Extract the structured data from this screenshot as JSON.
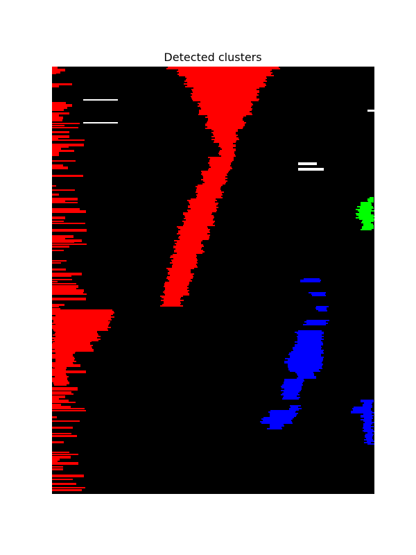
{
  "chart_data": {
    "type": "heatmap",
    "title": "Detected clusters",
    "xlabel": "",
    "ylabel": "",
    "axes_visible": false,
    "background_color": "#000000",
    "grid": false,
    "legend": "none",
    "clusters": [
      {
        "color": "#ff0000",
        "regions": [
          {
            "shape": "band",
            "description": "diagonal band from top center down-left",
            "rows": [
              [
                0,
                4,
                165,
                330
              ],
              [
                4,
                14,
                180,
                320
              ],
              [
                14,
                30,
                190,
                310
              ],
              [
                30,
                50,
                200,
                300
              ],
              [
                50,
                70,
                210,
                290
              ],
              [
                70,
                90,
                220,
                280
              ],
              [
                90,
                110,
                230,
                270
              ],
              [
                110,
                130,
                240,
                265
              ],
              [
                130,
                150,
                225,
                262
              ],
              [
                150,
                170,
                215,
                255
              ],
              [
                170,
                190,
                205,
                248
              ],
              [
                190,
                210,
                195,
                240
              ],
              [
                210,
                230,
                188,
                235
              ],
              [
                230,
                250,
                180,
                228
              ],
              [
                250,
                270,
                175,
                220
              ],
              [
                270,
                290,
                170,
                212
              ],
              [
                290,
                310,
                165,
                205
              ],
              [
                310,
                330,
                160,
                198
              ],
              [
                330,
                345,
                156,
                190
              ]
            ]
          },
          {
            "shape": "strip",
            "description": "left edge streaky column",
            "x_range": [
              0,
              45
            ],
            "y_range": [
              0,
              610
            ]
          },
          {
            "shape": "blob",
            "description": "left-middle bulge",
            "rows": [
              [
                350,
                365,
                0,
                90
              ],
              [
                365,
                380,
                0,
                85
              ],
              [
                380,
                395,
                0,
                70
              ],
              [
                395,
                410,
                0,
                60
              ],
              [
                410,
                430,
                0,
                35
              ],
              [
                430,
                460,
                0,
                25
              ]
            ]
          }
        ]
      },
      {
        "color": "#0000ff",
        "regions": [
          {
            "shape": "blob",
            "description": "lower right vertical cluster",
            "rows": [
              [
                305,
                310,
                358,
                390
              ],
              [
                325,
                330,
                370,
                395
              ],
              [
                345,
                352,
                380,
                400
              ],
              [
                365,
                372,
                362,
                400
              ],
              [
                380,
                390,
                350,
                393
              ],
              [
                390,
                400,
                350,
                392
              ],
              [
                400,
                410,
                345,
                392
              ],
              [
                410,
                420,
                340,
                392
              ],
              [
                420,
                430,
                335,
                392
              ],
              [
                430,
                440,
                340,
                390
              ],
              [
                440,
                450,
                350,
                382
              ],
              [
                450,
                460,
                330,
                365
              ],
              [
                460,
                470,
                330,
                360
              ],
              [
                470,
                480,
                330,
                358
              ]
            ]
          },
          {
            "shape": "blob",
            "description": "bottom blob near x 330",
            "rows": [
              [
                488,
                495,
                340,
                360
              ],
              [
                495,
                505,
                310,
                355
              ],
              [
                505,
                515,
                300,
                350
              ],
              [
                515,
                522,
                310,
                335
              ]
            ]
          },
          {
            "shape": "blob",
            "description": "right edge lower blob",
            "rows": [
              [
                480,
                490,
                445,
                465
              ],
              [
                490,
                500,
                430,
                465
              ],
              [
                500,
                510,
                445,
                465
              ],
              [
                510,
                525,
                448,
                465
              ],
              [
                525,
                545,
                450,
                465
              ]
            ]
          }
        ]
      },
      {
        "color": "#00ff00",
        "regions": [
          {
            "shape": "blob",
            "description": "right edge small cluster",
            "rows": [
              [
                188,
                195,
                455,
                465
              ],
              [
                195,
                205,
                440,
                465
              ],
              [
                205,
                220,
                438,
                465
              ],
              [
                220,
                235,
                445,
                465
              ]
            ]
          }
        ]
      },
      {
        "color": "#ffffff",
        "regions": [
          {
            "shape": "dashes",
            "description": "small white marks",
            "marks": [
              [
                80,
                45,
                95,
                47
              ],
              [
                138,
                355,
                382,
                140
              ],
              [
                146,
                355,
                392,
                148
              ],
              [
                62,
                455,
                465,
                63
              ]
            ]
          }
        ]
      }
    ]
  }
}
